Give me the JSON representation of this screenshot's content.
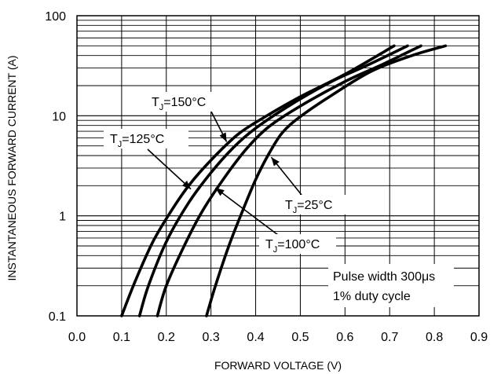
{
  "chart_data": {
    "type": "line",
    "xlabel": "FORWARD VOLTAGE (V)",
    "ylabel": "INSTANTANEOUS FORWARD CURRENT (A)",
    "xlim": [
      0.0,
      0.9
    ],
    "ylim": [
      0.1,
      100
    ],
    "y_scale": "log",
    "grid": true,
    "x_ticks": [
      "0.0",
      "0.1",
      "0.2",
      "0.3",
      "0.4",
      "0.5",
      "0.6",
      "0.7",
      "0.8",
      "0.9"
    ],
    "y_ticks": [
      "0.1",
      "1",
      "10",
      "100"
    ],
    "series": [
      {
        "name": "TJ=150°C",
        "label_main": "T",
        "label_sub": "J",
        "label_rest": "=150°C",
        "points": [
          [
            0.1,
            0.1
          ],
          [
            0.13,
            0.22
          ],
          [
            0.17,
            0.55
          ],
          [
            0.21,
            1.1
          ],
          [
            0.25,
            2.0
          ],
          [
            0.3,
            3.6
          ],
          [
            0.36,
            6.5
          ],
          [
            0.42,
            9.7
          ],
          [
            0.5,
            15.5
          ],
          [
            0.6,
            26
          ],
          [
            0.71,
            50
          ]
        ]
      },
      {
        "name": "TJ=125°C",
        "label_main": "T",
        "label_sub": "J",
        "label_rest": "=125°C",
        "points": [
          [
            0.14,
            0.1
          ],
          [
            0.16,
            0.2
          ],
          [
            0.2,
            0.55
          ],
          [
            0.25,
            1.35
          ],
          [
            0.3,
            2.7
          ],
          [
            0.35,
            4.8
          ],
          [
            0.4,
            7.5
          ],
          [
            0.48,
            13
          ],
          [
            0.57,
            22
          ],
          [
            0.65,
            32
          ],
          [
            0.74,
            50
          ]
        ]
      },
      {
        "name": "TJ=100°C",
        "label_main": "T",
        "label_sub": "J",
        "label_rest": "=100°C",
        "points": [
          [
            0.18,
            0.1
          ],
          [
            0.2,
            0.2
          ],
          [
            0.24,
            0.5
          ],
          [
            0.28,
            1.1
          ],
          [
            0.33,
            2.4
          ],
          [
            0.38,
            4.7
          ],
          [
            0.43,
            7.8
          ],
          [
            0.5,
            12.5
          ],
          [
            0.6,
            22
          ],
          [
            0.68,
            32
          ],
          [
            0.77,
            50
          ]
        ]
      },
      {
        "name": "TJ=25°C",
        "label_main": "T",
        "label_sub": "J",
        "label_rest": "=25°C",
        "points": [
          [
            0.29,
            0.1
          ],
          [
            0.31,
            0.2
          ],
          [
            0.34,
            0.5
          ],
          [
            0.37,
            1.1
          ],
          [
            0.4,
            2.3
          ],
          [
            0.43,
            4.2
          ],
          [
            0.46,
            6.8
          ],
          [
            0.5,
            9.8
          ],
          [
            0.57,
            16
          ],
          [
            0.66,
            28
          ],
          [
            0.75,
            40
          ],
          [
            0.825,
            50
          ]
        ]
      }
    ],
    "annotations": {
      "note_line1": "Pulse width 300μs",
      "note_line2": "1% duty cycle"
    }
  }
}
